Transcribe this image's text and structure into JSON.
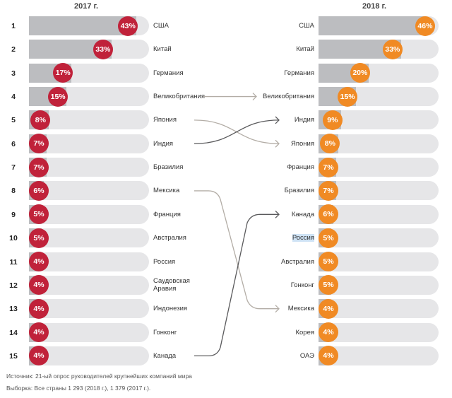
{
  "chart_data": {
    "type": "bar",
    "title": "",
    "xlabel": "",
    "ylabel": "",
    "xlim": [
      0,
      48
    ],
    "panels": [
      {
        "name": "2017 г.",
        "color": "#c0223a",
        "ranks": [
          "1",
          "2",
          "3",
          "4",
          "5",
          "6",
          "7",
          "8",
          "9",
          "10",
          "11",
          "12",
          "13",
          "14",
          "15"
        ],
        "categories": [
          "США",
          "Китай",
          "Германия",
          "Великобритания",
          "Япония",
          "Индия",
          "Бразилия",
          "Мексика",
          "Франция",
          "Австралия",
          "Россия",
          "Саудовская Аравия",
          "Индонезия",
          "Гонконг",
          "Канада"
        ],
        "values": [
          43,
          33,
          17,
          15,
          8,
          7,
          7,
          6,
          5,
          5,
          4,
          4,
          4,
          4,
          4
        ],
        "labels": [
          "43%",
          "33%",
          "17%",
          "15%",
          "8%",
          "7%",
          "7%",
          "6%",
          "5%",
          "5%",
          "4%",
          "4%",
          "4%",
          "4%",
          "4%"
        ]
      },
      {
        "name": "2018 г.",
        "color": "#f08a24",
        "categories": [
          "США",
          "Китай",
          "Германия",
          "Великобритания",
          "Индия",
          "Япония",
          "Франция",
          "Бразилия",
          "Канада",
          "Россия",
          "Австралия",
          "Гонконг",
          "Мексика",
          "Корея",
          "ОАЭ"
        ],
        "values": [
          46,
          33,
          20,
          15,
          9,
          8,
          7,
          7,
          6,
          5,
          5,
          5,
          4,
          4,
          4
        ],
        "labels": [
          "46%",
          "33%",
          "20%",
          "15%",
          "9%",
          "8%",
          "7%",
          "7%",
          "6%",
          "5%",
          "5%",
          "5%",
          "4%",
          "4%",
          "4%"
        ],
        "highlighted": "Россия"
      }
    ],
    "connections": [
      {
        "from": "Великобритания",
        "from_rank": 4,
        "to_rank": 4,
        "shade": "light"
      },
      {
        "from": "Япония",
        "from_rank": 5,
        "to_rank": 6,
        "shade": "light"
      },
      {
        "from": "Индия",
        "from_rank": 6,
        "to_rank": 5,
        "shade": "dark"
      },
      {
        "from": "Мексика",
        "from_rank": 8,
        "to_rank": 13,
        "shade": "light"
      },
      {
        "from": "Канада",
        "from_rank": 15,
        "to_rank": 9,
        "shade": "dark"
      }
    ]
  },
  "headers": {
    "left": "2017 г.",
    "right": "2018 г."
  },
  "footnotes": {
    "source": "Источник: 21-ый опрос руководителей крупнейших компаний мира",
    "sample": "Выборка: Все страны 1 293 (2018 г.), 1 379 (2017 г.)."
  }
}
